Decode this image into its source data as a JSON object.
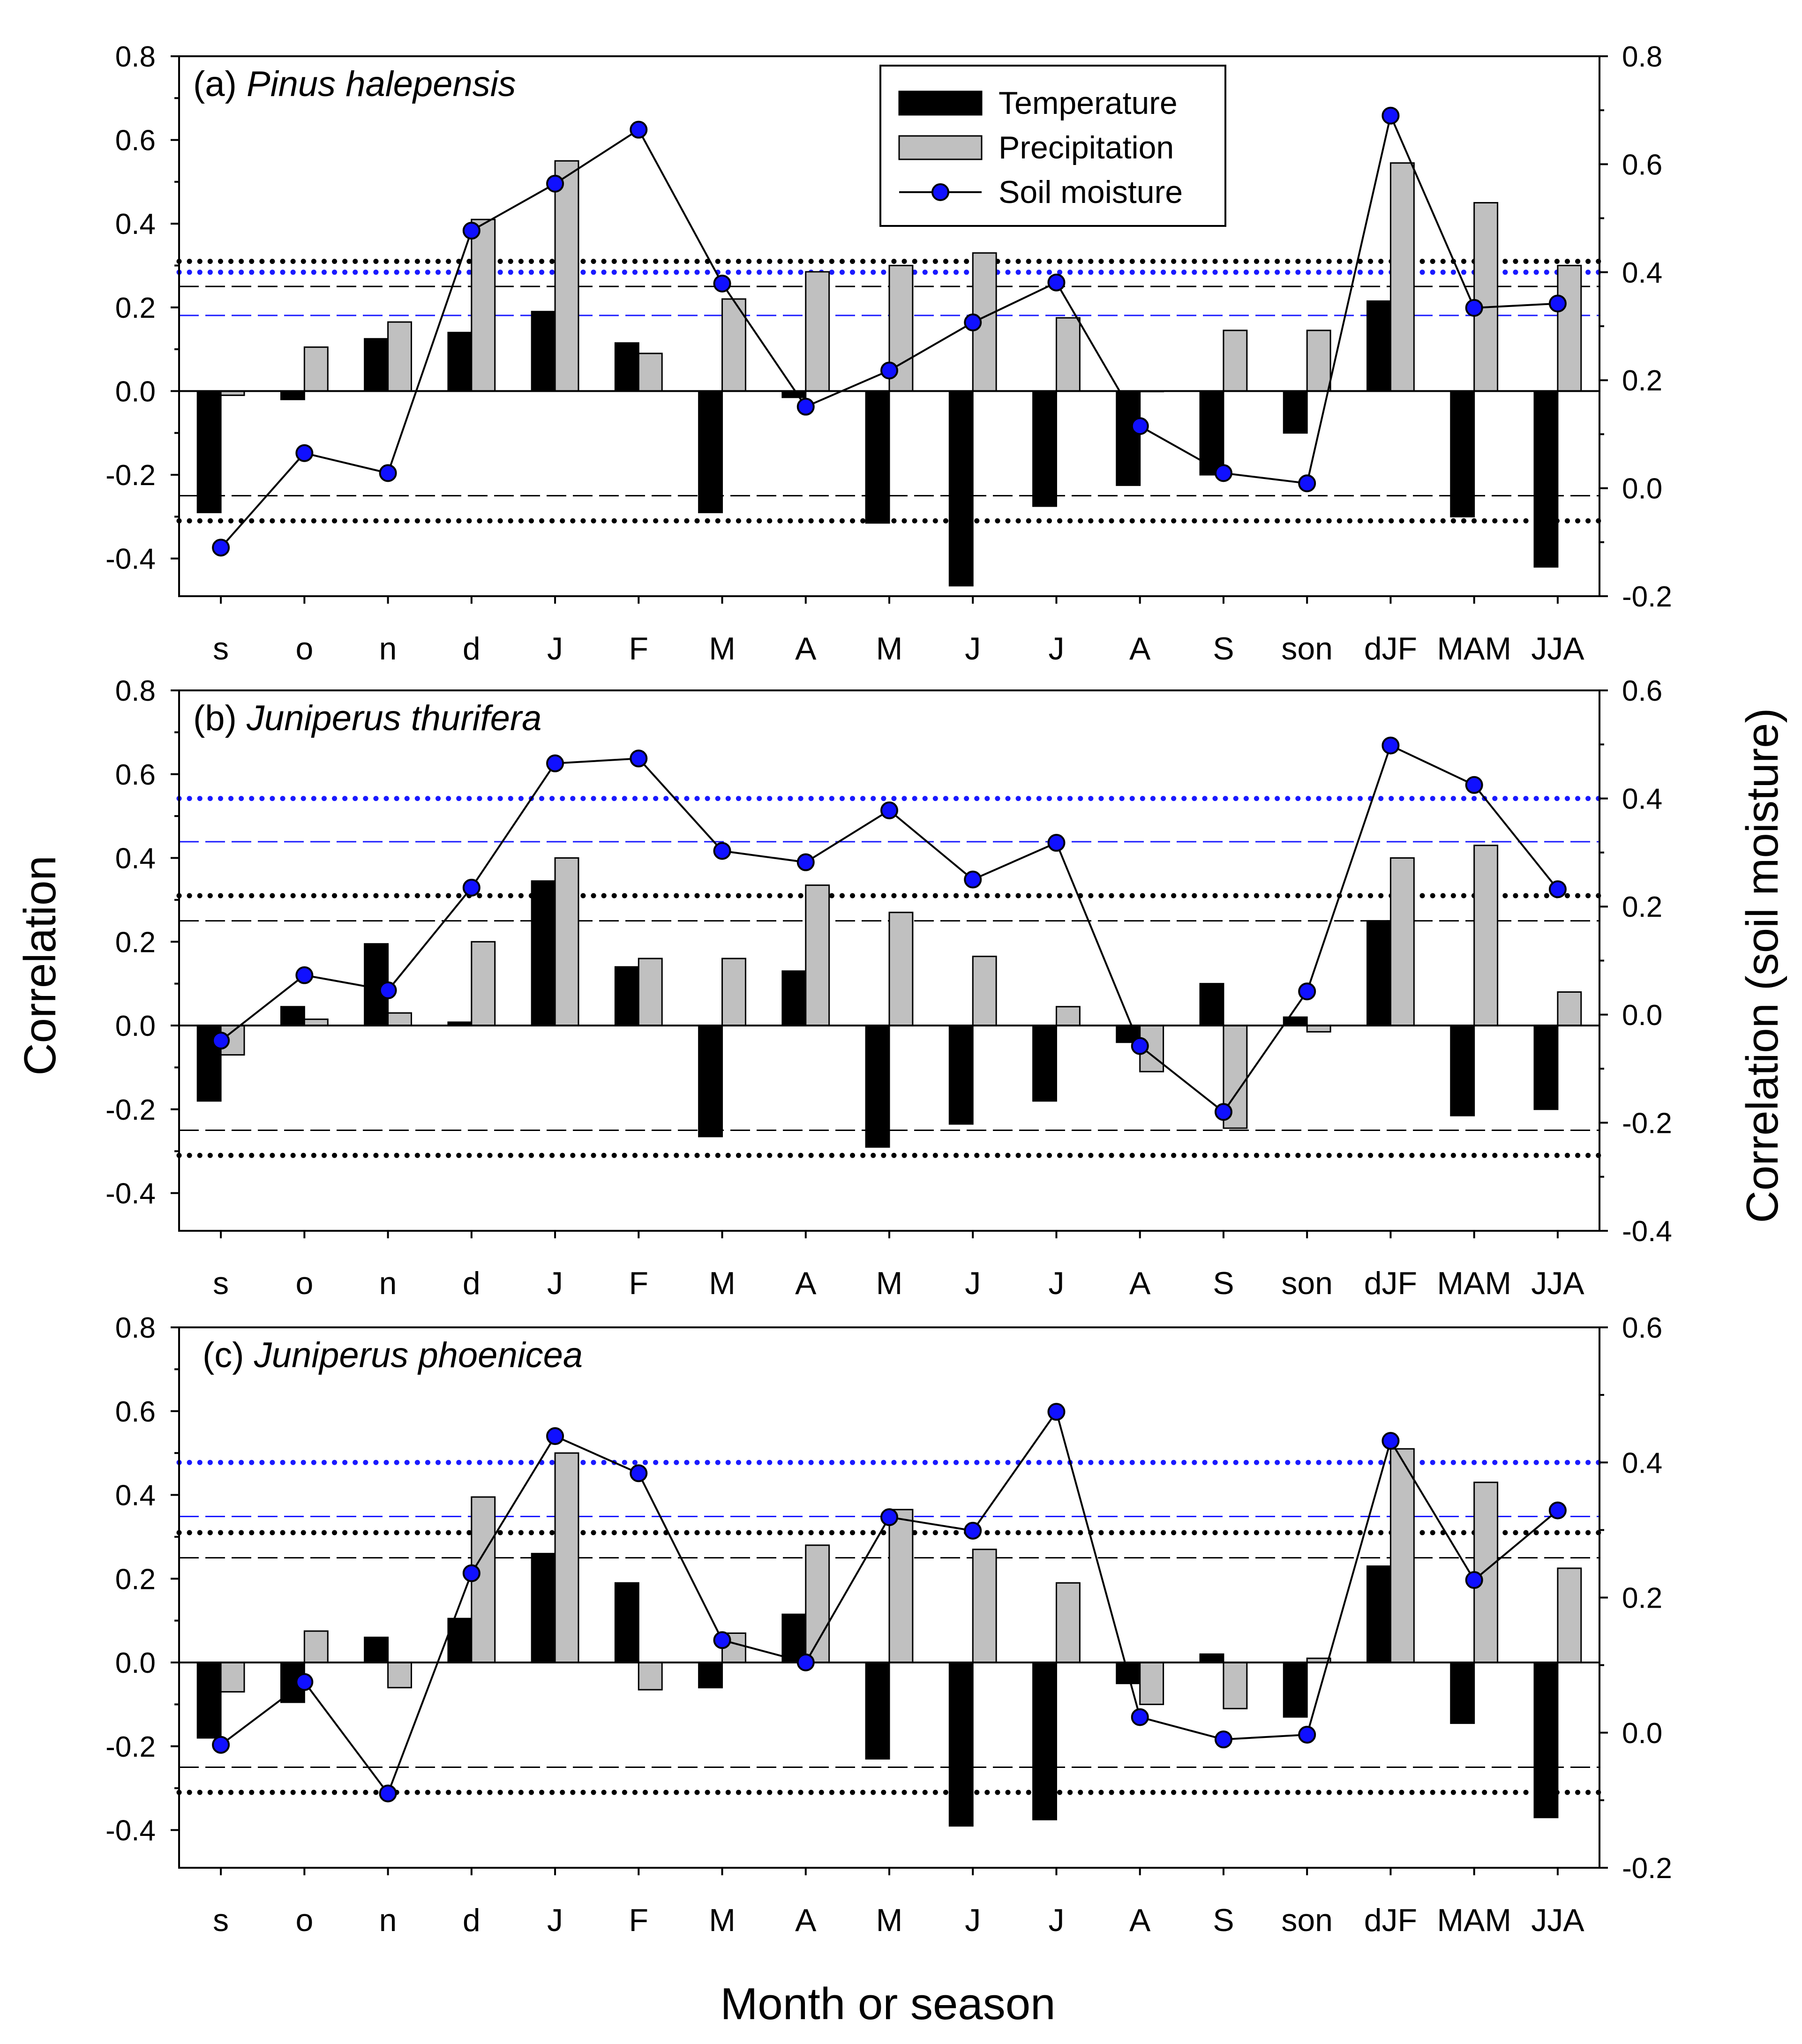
{
  "figure": {
    "ylabel_left": "Correlation",
    "ylabel_right": "Correlation (soil moisture)",
    "xlabel": "Month or season"
  },
  "legend": {
    "temperature": "Temperature",
    "precipitation": "Precipitation",
    "soil": "Soil moisture"
  },
  "colors": {
    "temperature": "#000000",
    "precipitation": "#c0c0c0",
    "soil_marker": "#1010ff",
    "blue_threshold": "#1a1aff"
  },
  "chart_data": [
    {
      "type": "bar",
      "panel": "(a)",
      "species": "Pinus halepensis",
      "categories": [
        "s",
        "o",
        "n",
        "d",
        "J",
        "F",
        "M",
        "A",
        "M",
        "J",
        "J",
        "A",
        "S",
        "son",
        "dJF",
        "MAM",
        "JJA"
      ],
      "left_axis": {
        "ylim": [
          -0.49,
          0.8
        ],
        "ticks": [
          "-0.4",
          "-0.2",
          "0.0",
          "0.2",
          "0.4",
          "0.6",
          "0.8"
        ],
        "tick_values": [
          -0.4,
          -0.2,
          0.0,
          0.2,
          0.4,
          0.6,
          0.8
        ]
      },
      "right_axis": {
        "ylim": [
          -0.2,
          0.8
        ],
        "ticks": [
          "-0.2",
          "0.0",
          "0.2",
          "0.4",
          "0.6",
          "0.8"
        ],
        "tick_values": [
          -0.2,
          0.0,
          0.2,
          0.4,
          0.6,
          0.8
        ]
      },
      "series": [
        {
          "name": "Temperature",
          "axis": "left",
          "values": [
            -0.29,
            -0.02,
            0.125,
            0.14,
            0.19,
            0.115,
            -0.29,
            -0.015,
            -0.315,
            -0.465,
            -0.275,
            -0.225,
            -0.2,
            -0.1,
            0.215,
            -0.3,
            -0.42
          ]
        },
        {
          "name": "Precipitation",
          "axis": "left",
          "values": [
            -0.01,
            0.105,
            0.165,
            0.41,
            0.55,
            0.09,
            0.22,
            0.285,
            0.3,
            0.33,
            0.175,
            0.0,
            0.145,
            0.145,
            0.545,
            0.45,
            0.3
          ]
        },
        {
          "name": "Soil moisture",
          "axis": "right",
          "values": [
            -0.11,
            0.065,
            0.028,
            0.477,
            0.564,
            0.664,
            0.379,
            0.151,
            0.218,
            0.307,
            0.381,
            0.115,
            0.028,
            0.009,
            0.69,
            0.334,
            0.342
          ]
        }
      ],
      "thresholds": {
        "black_dotted": [
          0.31,
          -0.31
        ],
        "black_dashed": [
          0.25,
          -0.25
        ],
        "blue_dotted_right": 0.4,
        "blue_dashed_right": 0.32
      }
    },
    {
      "type": "bar",
      "panel": "(b)",
      "species": "Juniperus thurifera",
      "categories": [
        "s",
        "o",
        "n",
        "d",
        "J",
        "F",
        "M",
        "A",
        "M",
        "J",
        "J",
        "A",
        "S",
        "son",
        "dJF",
        "MAM",
        "JJA"
      ],
      "left_axis": {
        "ylim": [
          -0.49,
          0.8
        ],
        "ticks": [
          "-0.4",
          "-0.2",
          "0.0",
          "0.2",
          "0.4",
          "0.6",
          "0.8"
        ],
        "tick_values": [
          -0.4,
          -0.2,
          0.0,
          0.2,
          0.4,
          0.6,
          0.8
        ]
      },
      "right_axis": {
        "ylim": [
          -0.4,
          0.6
        ],
        "ticks": [
          "-0.4",
          "-0.2",
          "0.0",
          "0.2",
          "0.4",
          "0.6"
        ],
        "tick_values": [
          -0.4,
          -0.2,
          0.0,
          0.2,
          0.4,
          0.6
        ]
      },
      "series": [
        {
          "name": "Temperature",
          "axis": "left",
          "values": [
            -0.18,
            0.045,
            0.195,
            0.008,
            0.345,
            0.14,
            -0.265,
            0.13,
            -0.29,
            -0.235,
            -0.18,
            -0.04,
            0.1,
            0.02,
            0.25,
            -0.215,
            -0.2
          ]
        },
        {
          "name": "Precipitation",
          "axis": "left",
          "values": [
            -0.07,
            0.015,
            0.03,
            0.2,
            0.4,
            0.16,
            0.16,
            0.335,
            0.27,
            0.165,
            0.045,
            -0.11,
            -0.245,
            -0.015,
            0.4,
            0.43,
            0.08
          ]
        },
        {
          "name": "Soil moisture",
          "axis": "right",
          "values": [
            -0.048,
            0.073,
            0.045,
            0.235,
            0.465,
            0.474,
            0.303,
            0.282,
            0.378,
            0.25,
            0.318,
            -0.058,
            -0.18,
            0.043,
            0.498,
            0.425,
            0.232
          ]
        }
      ],
      "thresholds": {
        "black_dotted": [
          0.31,
          -0.31
        ],
        "black_dashed": [
          0.25,
          -0.25
        ],
        "blue_dotted_right": 0.4,
        "blue_dashed_right": 0.32
      }
    },
    {
      "type": "bar",
      "panel": "(c)",
      "species": "Juniperus phoenicea",
      "categories": [
        "s",
        "o",
        "n",
        "d",
        "J",
        "F",
        "M",
        "A",
        "M",
        "J",
        "J",
        "A",
        "S",
        "son",
        "dJF",
        "MAM",
        "JJA"
      ],
      "left_axis": {
        "ylim": [
          -0.49,
          0.8
        ],
        "ticks": [
          "-0.4",
          "-0.2",
          "0.0",
          "0.2",
          "0.4",
          "0.6",
          "0.8"
        ],
        "tick_values": [
          -0.4,
          -0.2,
          0.0,
          0.2,
          0.4,
          0.6,
          0.8
        ]
      },
      "right_axis": {
        "ylim": [
          -0.2,
          0.6
        ],
        "ticks": [
          "-0.2",
          "0.0",
          "0.2",
          "0.4",
          "0.6"
        ],
        "tick_values": [
          -0.2,
          0.0,
          0.2,
          0.4,
          0.6
        ]
      },
      "series": [
        {
          "name": "Temperature",
          "axis": "left",
          "values": [
            -0.18,
            -0.095,
            0.06,
            0.105,
            0.26,
            0.19,
            -0.06,
            0.115,
            -0.23,
            -0.39,
            -0.375,
            -0.05,
            0.02,
            -0.13,
            0.23,
            -0.145,
            -0.37
          ]
        },
        {
          "name": "Precipitation",
          "axis": "left",
          "values": [
            -0.07,
            0.075,
            -0.06,
            0.395,
            0.5,
            -0.065,
            0.07,
            0.28,
            0.365,
            0.27,
            0.19,
            -0.1,
            -0.11,
            0.01,
            0.51,
            0.43,
            0.225
          ]
        },
        {
          "name": "Soil moisture",
          "axis": "right",
          "values": [
            -0.018,
            0.075,
            -0.09,
            0.236,
            0.439,
            0.384,
            0.137,
            0.104,
            0.319,
            0.299,
            0.475,
            0.023,
            -0.01,
            -0.003,
            0.432,
            0.226,
            0.329
          ]
        }
      ],
      "thresholds": {
        "black_dotted": [
          0.31,
          -0.31
        ],
        "black_dashed": [
          0.25,
          -0.25
        ],
        "blue_dotted_right": 0.4,
        "blue_dashed_right": 0.32
      }
    }
  ]
}
